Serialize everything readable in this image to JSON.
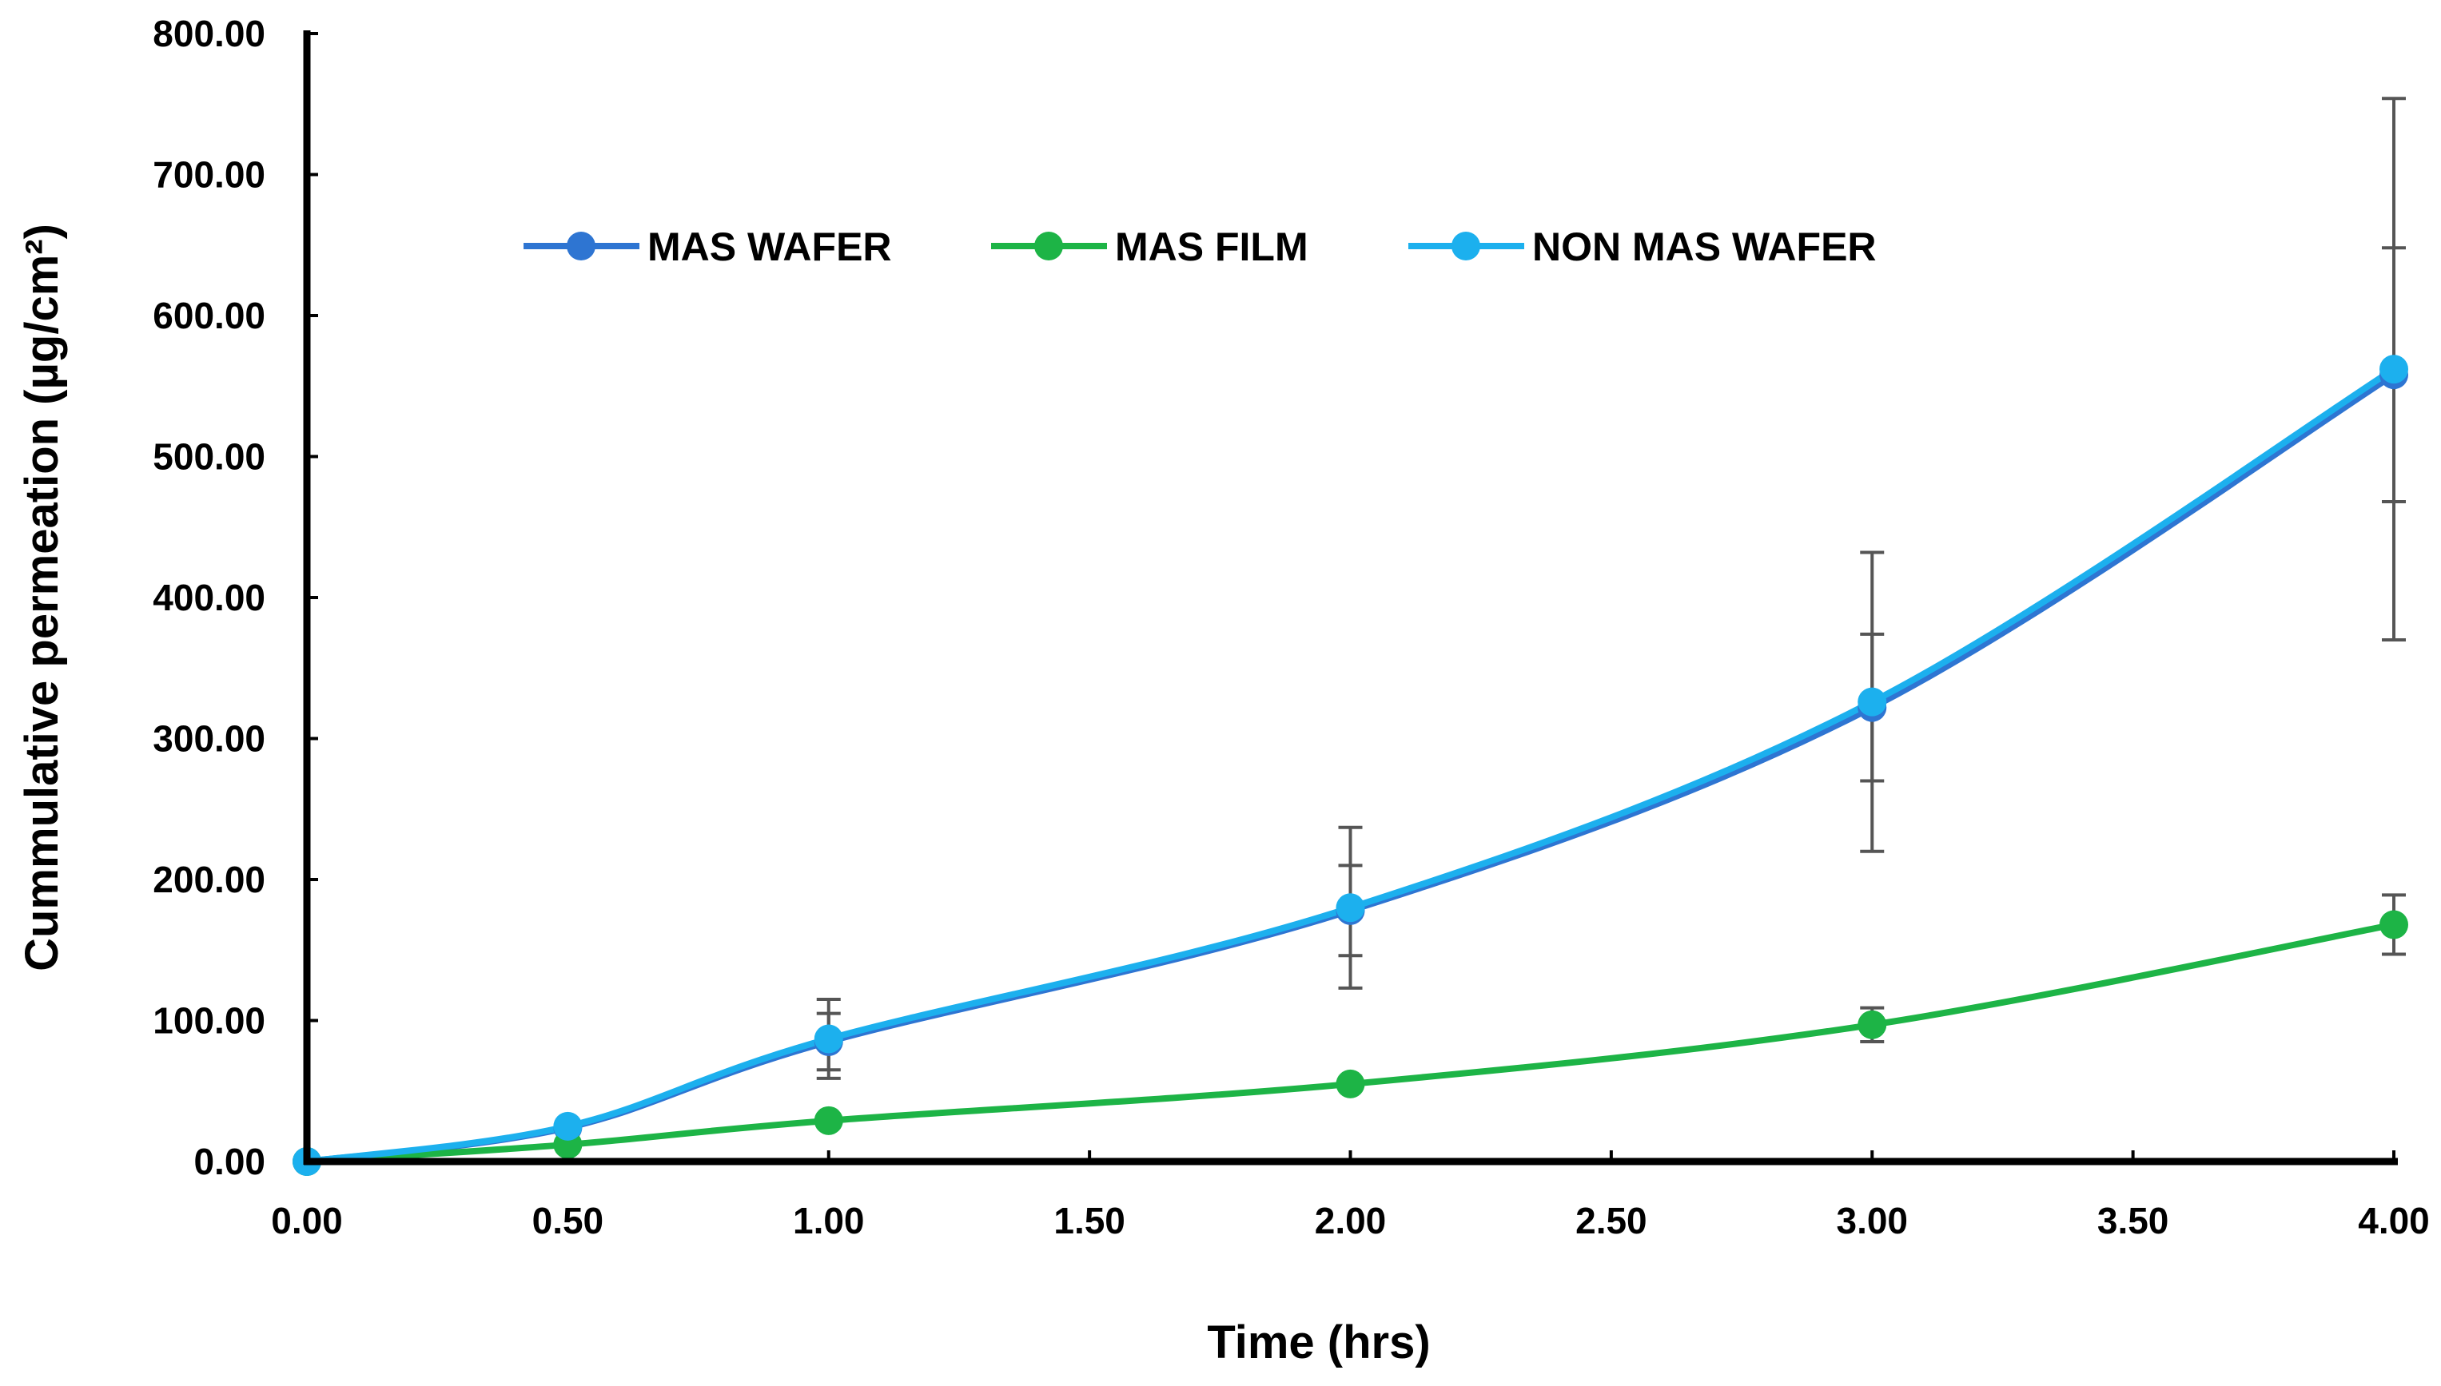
{
  "chart_data": {
    "type": "line",
    "title": "",
    "xlabel": "Time (hrs)",
    "ylabel": "Cummulative permeation (µg/cm²)",
    "xlim": [
      0,
      4
    ],
    "ylim": [
      0,
      800
    ],
    "xticks": [
      0,
      0.5,
      1,
      1.5,
      2,
      2.5,
      3,
      3.5,
      4
    ],
    "yticks": [
      0,
      100,
      200,
      300,
      400,
      500,
      600,
      700,
      800
    ],
    "x_tick_labels": [
      "0.00",
      "0.50",
      "1.00",
      "1.50",
      "2.00",
      "2.50",
      "3.00",
      "3.50",
      "4.00"
    ],
    "y_tick_labels": [
      "0.00",
      "100.00",
      "200.00",
      "300.00",
      "400.00",
      "500.00",
      "600.00",
      "700.00",
      "800.00"
    ],
    "grid": false,
    "legend_position": "top-center",
    "x": [
      0,
      0.5,
      1,
      2,
      3,
      4
    ],
    "series": [
      {
        "name": "MAS WAFER",
        "color": "#2E75D2",
        "values": [
          0,
          24,
          85,
          178,
          322,
          558
        ],
        "error": [
          0,
          3,
          20,
          32,
          52,
          90
        ]
      },
      {
        "name": "MAS FILM",
        "color": "#1DB446",
        "values": [
          0,
          12,
          29,
          55,
          97,
          168
        ],
        "error": [
          0,
          1,
          3,
          4,
          12,
          21
        ]
      },
      {
        "name": "NON MAS WAFER",
        "color": "#1CB0EE",
        "values": [
          0,
          25,
          87,
          180,
          326,
          562
        ],
        "error": [
          0,
          4,
          28,
          57,
          106,
          192
        ]
      }
    ]
  }
}
